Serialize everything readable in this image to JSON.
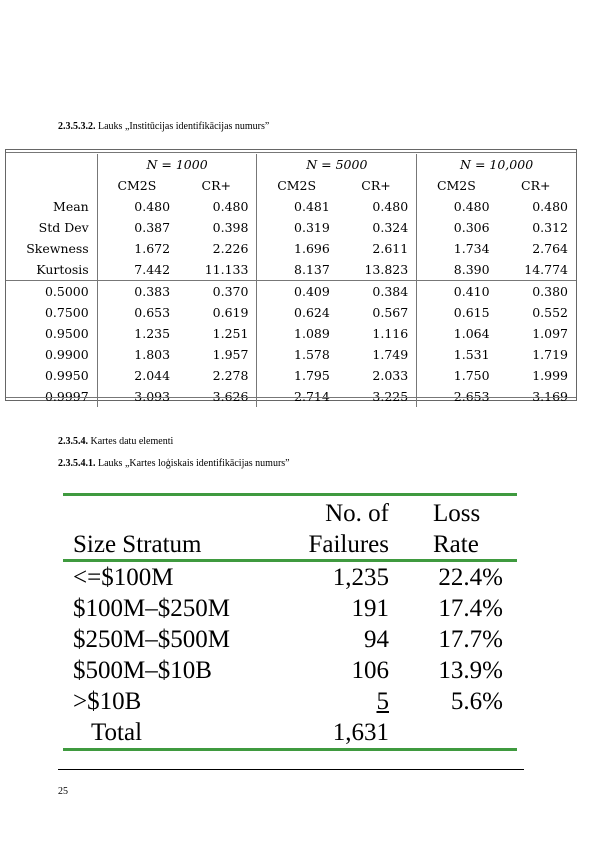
{
  "heading1": {
    "number": "2.3.5.3.2.",
    "text": "Lauks „Institūcijas identifikācijas numurs”"
  },
  "table1": {
    "groups": [
      "N = 1000",
      "N = 5000",
      "N = 10,000"
    ],
    "subheaders": [
      "CM2S",
      "CR+",
      "CM2S",
      "CR+",
      "CM2S",
      "CR+"
    ],
    "stats_rows": [
      {
        "label": "Mean",
        "values": [
          "0.480",
          "0.480",
          "0.481",
          "0.480",
          "0.480",
          "0.480"
        ]
      },
      {
        "label": "Std Dev",
        "values": [
          "0.387",
          "0.398",
          "0.319",
          "0.324",
          "0.306",
          "0.312"
        ]
      },
      {
        "label": "Skewness",
        "values": [
          "1.672",
          "2.226",
          "1.696",
          "2.611",
          "1.734",
          "2.764"
        ]
      },
      {
        "label": "Kurtosis",
        "values": [
          "7.442",
          "11.133",
          "8.137",
          "13.823",
          "8.390",
          "14.774"
        ]
      }
    ],
    "quantile_rows": [
      {
        "label": "0.5000",
        "values": [
          "0.383",
          "0.370",
          "0.409",
          "0.384",
          "0.410",
          "0.380"
        ]
      },
      {
        "label": "0.7500",
        "values": [
          "0.653",
          "0.619",
          "0.624",
          "0.567",
          "0.615",
          "0.552"
        ]
      },
      {
        "label": "0.9500",
        "values": [
          "1.235",
          "1.251",
          "1.089",
          "1.116",
          "1.064",
          "1.097"
        ]
      },
      {
        "label": "0.9900",
        "values": [
          "1.803",
          "1.957",
          "1.578",
          "1.749",
          "1.531",
          "1.719"
        ]
      },
      {
        "label": "0.9950",
        "values": [
          "2.044",
          "2.278",
          "1.795",
          "2.033",
          "1.750",
          "1.999"
        ]
      },
      {
        "label": "0.9997",
        "values": [
          "3.093",
          "3.626",
          "2.714",
          "3.225",
          "2.653",
          "3.169"
        ]
      }
    ]
  },
  "heading2": {
    "number": "2.3.5.4.",
    "text": "Kartes datu elementi"
  },
  "heading3": {
    "number": "2.3.5.4.1.",
    "text": "Lauks „Kartes loģiskais identifikācijas numurs”"
  },
  "table2": {
    "header": {
      "col1": "Size Stratum",
      "col2_line1": "No. of",
      "col2_line2": "Failures",
      "col3_line1": "Loss",
      "col3_line2": "Rate"
    },
    "rows": [
      {
        "stratum": "<=$100M",
        "failures": "1,235",
        "rate": "22.4%"
      },
      {
        "stratum": "$100M–$250M",
        "failures": "191",
        "rate": "17.4%"
      },
      {
        "stratum": "$250M–$500M",
        "failures": "94",
        "rate": "17.7%"
      },
      {
        "stratum": "$500M–$10B",
        "failures": "106",
        "rate": "13.9%"
      },
      {
        "stratum": ">$10B",
        "failures": "5",
        "rate": "5.6%"
      }
    ],
    "total": {
      "label": "Total",
      "failures": "1,631",
      "rate": ""
    },
    "rule_color": "#3f9a3f"
  },
  "page_number": "25"
}
